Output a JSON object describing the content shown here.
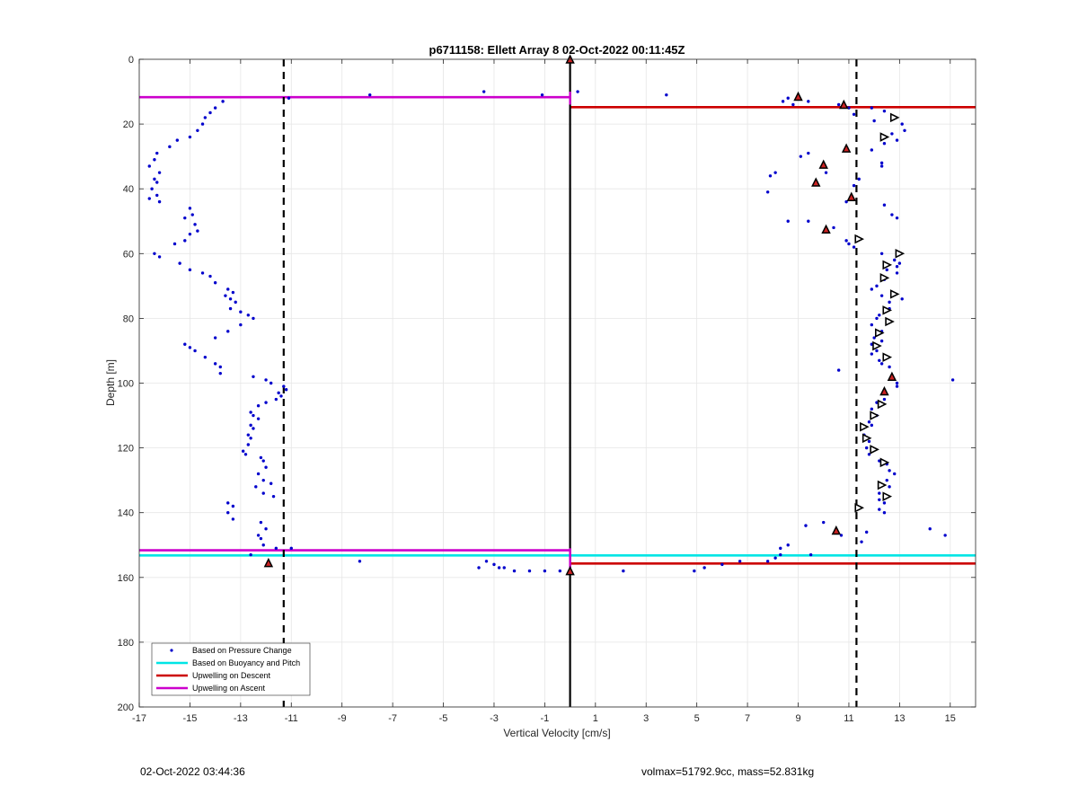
{
  "chart_data": {
    "type": "scatter",
    "title": "p6711158: Ellett Array 8 02-Oct-2022 00:11:45Z",
    "xlabel": "Vertical Velocity [cm/s]",
    "ylabel": "Depth [m]",
    "xlim": [
      -17,
      16
    ],
    "ylim": [
      0,
      200
    ],
    "y_reversed": true,
    "grid": true,
    "x_ticks": [
      -17,
      -15,
      -13,
      -11,
      -9,
      -7,
      -5,
      -3,
      -1,
      1,
      3,
      5,
      7,
      9,
      11,
      13,
      15
    ],
    "y_ticks": [
      0,
      20,
      40,
      60,
      80,
      100,
      120,
      140,
      160,
      180,
      200
    ],
    "legend_position": "bottom-left",
    "legend": [
      {
        "label": "Based on Pressure Change",
        "color": "#0000cc",
        "style": "dot"
      },
      {
        "label": "Based on Buoyancy and Pitch",
        "color": "#00e5e5",
        "style": "line"
      },
      {
        "label": "Upwelling on Descent",
        "color": "#cc0000",
        "style": "line"
      },
      {
        "label": "Upwelling on Ascent",
        "color": "#cc00cc",
        "style": "line"
      }
    ],
    "vertical_lines": [
      {
        "x": -11.3,
        "style": "dashed",
        "color": "#000000"
      },
      {
        "x": 0,
        "style": "solid",
        "color": "#000000"
      },
      {
        "x": 11.3,
        "style": "dashed",
        "color": "#000000"
      }
    ],
    "series": [
      {
        "name": "Based on Pressure Change",
        "color": "#0000cc",
        "points": [
          [
            -13.7,
            13
          ],
          [
            -14,
            15
          ],
          [
            -14.2,
            16.5
          ],
          [
            -14.4,
            18
          ],
          [
            -14.5,
            20
          ],
          [
            -14.7,
            22
          ],
          [
            -15,
            24
          ],
          [
            -15.5,
            25
          ],
          [
            -15.8,
            27
          ],
          [
            -16.3,
            29
          ],
          [
            -16.4,
            31
          ],
          [
            -16.6,
            33
          ],
          [
            -16.2,
            35
          ],
          [
            -16.4,
            37
          ],
          [
            -16.3,
            38
          ],
          [
            -16.5,
            40
          ],
          [
            -16.3,
            42
          ],
          [
            -16.6,
            43
          ],
          [
            -16.2,
            44
          ],
          [
            -15,
            46
          ],
          [
            -14.9,
            48
          ],
          [
            -15.2,
            49
          ],
          [
            -14.8,
            51
          ],
          [
            -14.7,
            53
          ],
          [
            -15,
            54
          ],
          [
            -15.2,
            56
          ],
          [
            -15.6,
            57
          ],
          [
            -16.4,
            60
          ],
          [
            -16.2,
            61
          ],
          [
            -15.4,
            63
          ],
          [
            -15,
            65
          ],
          [
            -14.5,
            66
          ],
          [
            -14.2,
            67
          ],
          [
            -14,
            69
          ],
          [
            -13.5,
            71
          ],
          [
            -13.3,
            72
          ],
          [
            -13.6,
            73
          ],
          [
            -13.4,
            74
          ],
          [
            -13.2,
            75
          ],
          [
            -13.4,
            77
          ],
          [
            -13,
            78
          ],
          [
            -12.7,
            79
          ],
          [
            -12.5,
            80
          ],
          [
            -13,
            82
          ],
          [
            -13.5,
            84
          ],
          [
            -14,
            86
          ],
          [
            -15.2,
            88
          ],
          [
            -15,
            89
          ],
          [
            -14.8,
            90
          ],
          [
            -14.4,
            92
          ],
          [
            -14,
            94
          ],
          [
            -13.8,
            95
          ],
          [
            -13.8,
            97
          ],
          [
            -12.5,
            98
          ],
          [
            -12,
            99
          ],
          [
            -11.8,
            100
          ],
          [
            -11.3,
            101
          ],
          [
            -11.2,
            102
          ],
          [
            -11.5,
            103
          ],
          [
            -11.4,
            104
          ],
          [
            -11.6,
            105
          ],
          [
            -12,
            106
          ],
          [
            -12.3,
            107
          ],
          [
            -12.6,
            109
          ],
          [
            -12.5,
            110
          ],
          [
            -12.3,
            111
          ],
          [
            -12.6,
            113
          ],
          [
            -12.5,
            114
          ],
          [
            -12.7,
            116
          ],
          [
            -12.6,
            117
          ],
          [
            -12.7,
            119
          ],
          [
            -12.9,
            121
          ],
          [
            -12.8,
            122
          ],
          [
            -12.2,
            123
          ],
          [
            -12.1,
            124
          ],
          [
            -12,
            126
          ],
          [
            -12.3,
            128
          ],
          [
            -12.1,
            130
          ],
          [
            -11.8,
            131
          ],
          [
            -12.4,
            132
          ],
          [
            -12.1,
            134
          ],
          [
            -11.7,
            135
          ],
          [
            -13.5,
            137
          ],
          [
            -13.3,
            138
          ],
          [
            -13.5,
            140
          ],
          [
            -13.3,
            142
          ],
          [
            -12.2,
            143
          ],
          [
            -12,
            145
          ],
          [
            -12.3,
            147
          ],
          [
            -12.2,
            148
          ],
          [
            -12.1,
            150
          ],
          [
            -11.6,
            151
          ],
          [
            -11,
            151
          ],
          [
            -12.6,
            153
          ],
          [
            -8.3,
            155
          ],
          [
            -3.3,
            155
          ],
          [
            -3,
            156
          ],
          [
            -2.8,
            157
          ],
          [
            -2.6,
            157
          ],
          [
            -3.6,
            157
          ],
          [
            -2.2,
            158
          ],
          [
            -1.6,
            158
          ],
          [
            -1,
            158
          ],
          [
            -0.4,
            158
          ],
          [
            2.1,
            158
          ],
          [
            4.9,
            158
          ],
          [
            5.3,
            157
          ],
          [
            6,
            156
          ],
          [
            6.7,
            155
          ],
          [
            7.8,
            155
          ],
          [
            8.1,
            154
          ],
          [
            8.3,
            153
          ],
          [
            8.3,
            151
          ],
          [
            8.6,
            150
          ],
          [
            9.3,
            144
          ],
          [
            9.5,
            153
          ],
          [
            10,
            143
          ],
          [
            10.7,
            147
          ],
          [
            11.5,
            149
          ],
          [
            11.7,
            146
          ],
          [
            12.4,
            140
          ],
          [
            12.2,
            139
          ],
          [
            14.2,
            145
          ],
          [
            14.8,
            147
          ],
          [
            -11.1,
            12
          ],
          [
            -7.9,
            11
          ],
          [
            -3.4,
            10
          ],
          [
            -1.1,
            11
          ],
          [
            0.3,
            10
          ],
          [
            3.8,
            11
          ],
          [
            8.4,
            13
          ],
          [
            8.6,
            12
          ],
          [
            8.8,
            14
          ],
          [
            9.4,
            13
          ],
          [
            10.6,
            14
          ],
          [
            11,
            15
          ],
          [
            11.9,
            15
          ],
          [
            12.4,
            16
          ],
          [
            11.2,
            17
          ],
          [
            12,
            19
          ],
          [
            13.1,
            20
          ],
          [
            13.2,
            22
          ],
          [
            12.7,
            23
          ],
          [
            12.9,
            25
          ],
          [
            12.4,
            26
          ],
          [
            11.9,
            28
          ],
          [
            12.3,
            32
          ],
          [
            12.3,
            33
          ],
          [
            11.4,
            37
          ],
          [
            11.2,
            39
          ],
          [
            9.1,
            30
          ],
          [
            9.4,
            29
          ],
          [
            8.1,
            35
          ],
          [
            7.9,
            36
          ],
          [
            7.8,
            41
          ],
          [
            10.1,
            35
          ],
          [
            10.9,
            44
          ],
          [
            12.4,
            45
          ],
          [
            12.7,
            48
          ],
          [
            12.9,
            49
          ],
          [
            8.6,
            50
          ],
          [
            9.4,
            50
          ],
          [
            10.4,
            52
          ],
          [
            10.9,
            56
          ],
          [
            11,
            57
          ],
          [
            11.2,
            58
          ],
          [
            12.3,
            60
          ],
          [
            12.8,
            62
          ],
          [
            13,
            63
          ],
          [
            12.9,
            64
          ],
          [
            12.5,
            65
          ],
          [
            12.9,
            66
          ],
          [
            12.4,
            68
          ],
          [
            12.1,
            70
          ],
          [
            11.9,
            71
          ],
          [
            12.3,
            73
          ],
          [
            13.1,
            74
          ],
          [
            12.6,
            75
          ],
          [
            12.6,
            77
          ],
          [
            12.2,
            79
          ],
          [
            12.1,
            80
          ],
          [
            11.9,
            82
          ],
          [
            12.3,
            84
          ],
          [
            12,
            86
          ],
          [
            12.3,
            87
          ],
          [
            11.9,
            88
          ],
          [
            12.1,
            90
          ],
          [
            11.9,
            91
          ],
          [
            12.2,
            93
          ],
          [
            12.3,
            94
          ],
          [
            12.6,
            95
          ],
          [
            10.6,
            96
          ],
          [
            15.1,
            99
          ],
          [
            12.9,
            100
          ],
          [
            12.9,
            101
          ],
          [
            12.4,
            103
          ],
          [
            12.4,
            105
          ],
          [
            12.1,
            106
          ],
          [
            11.9,
            108
          ],
          [
            12.1,
            110
          ],
          [
            11.8,
            112
          ],
          [
            11.9,
            113
          ],
          [
            11.6,
            116
          ],
          [
            11.8,
            118
          ],
          [
            11.7,
            120
          ],
          [
            11.8,
            122
          ],
          [
            12.2,
            124
          ],
          [
            12.5,
            125
          ],
          [
            12.6,
            127
          ],
          [
            12.8,
            128
          ],
          [
            12.5,
            130
          ],
          [
            12.6,
            132
          ],
          [
            12.2,
            134
          ],
          [
            12.2,
            136
          ],
          [
            12.4,
            137
          ]
        ]
      },
      {
        "name": "Upwelling on Descent",
        "color": "#cc0000",
        "markers": [
          [
            0,
            0
          ],
          [
            9,
            11.5
          ],
          [
            10.8,
            14
          ],
          [
            10.9,
            27.5
          ],
          [
            10,
            32.5
          ],
          [
            9.7,
            38
          ],
          [
            11.1,
            42.5
          ],
          [
            10.1,
            52.5
          ],
          [
            12.7,
            98
          ],
          [
            12.4,
            102.5
          ],
          [
            10.5,
            145.5
          ],
          [
            -11.9,
            155.5
          ],
          [
            0,
            158
          ]
        ]
      },
      {
        "name": "Upwelling on Ascent",
        "color": "#000000",
        "markers": [
          [
            12.8,
            18
          ],
          [
            12.4,
            24
          ],
          [
            11.4,
            55.5
          ],
          [
            13,
            60
          ],
          [
            12.5,
            63.5
          ],
          [
            12.4,
            67.5
          ],
          [
            12.8,
            72.5
          ],
          [
            12.5,
            77.5
          ],
          [
            12.6,
            81
          ],
          [
            12.2,
            84.5
          ],
          [
            12.1,
            88.5
          ],
          [
            12.5,
            92
          ],
          [
            12.3,
            106.5
          ],
          [
            12,
            110
          ],
          [
            11.6,
            113.5
          ],
          [
            11.7,
            117
          ],
          [
            12,
            120.5
          ],
          [
            12.4,
            124.5
          ],
          [
            12.3,
            131.5
          ],
          [
            12.5,
            135
          ],
          [
            11.4,
            138.5
          ]
        ]
      }
    ],
    "horizontal_segments": [
      {
        "name": "Upwelling on Ascent",
        "color": "#cc00cc",
        "y": 11.7,
        "x0": -17,
        "x1": 0
      },
      {
        "name": "Upwelling on Descent",
        "color": "#cc0000",
        "y": 14.8,
        "x0": 0,
        "x1": 16
      },
      {
        "name": "Upwelling on Ascent",
        "color": "#cc00cc",
        "y": 151.6,
        "x0": -17,
        "x1": 0
      },
      {
        "name": "Based on Buoyancy and Pitch",
        "color": "#00e5e5",
        "y": 153.2,
        "x0": -17,
        "x1": 16
      },
      {
        "name": "Upwelling on Descent",
        "color": "#cc0000",
        "y": 155.7,
        "x0": 0,
        "x1": 16
      }
    ],
    "vertical_segments": [
      {
        "name": "Upwelling on Ascent",
        "color": "#cc00cc",
        "x": 0,
        "y0": 10,
        "y1": 14
      },
      {
        "name": "Upwelling on Ascent",
        "color": "#cc00cc",
        "x": 0,
        "y0": 151,
        "y1": 158
      }
    ]
  },
  "footer": {
    "timestamp": "02-Oct-2022 03:44:36",
    "info": "volmax=51792.9cc, mass=52.831kg"
  }
}
